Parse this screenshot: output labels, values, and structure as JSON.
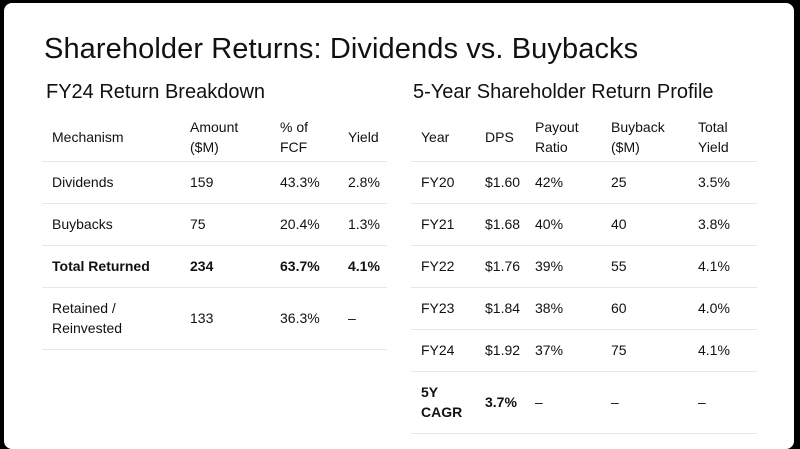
{
  "title": "Shareholder Returns: Dividends vs. Buybacks",
  "left": {
    "subtitle": "FY24 Return Breakdown",
    "headers": [
      "Mechanism",
      "Amount\n($M)",
      "% of\nFCF",
      "Yield"
    ],
    "rows": [
      [
        "Dividends",
        "159",
        "43.3%",
        "2.8%"
      ],
      [
        "Buybacks",
        "75",
        "20.4%",
        "1.3%"
      ],
      [
        "Total Returned",
        "234",
        "63.7%",
        "4.1%"
      ],
      [
        "Retained /\nReinvested",
        "133",
        "36.3%",
        "–"
      ]
    ]
  },
  "right": {
    "subtitle": "5-Year Shareholder Return Profile",
    "headers": [
      "Year",
      "DPS",
      "Payout\nRatio",
      "Buyback\n($M)",
      "Total\nYield"
    ],
    "rows": [
      [
        "FY20",
        "$1.60",
        "42%",
        "25",
        "3.5%"
      ],
      [
        "FY21",
        "$1.68",
        "40%",
        "40",
        "3.8%"
      ],
      [
        "FY22",
        "$1.76",
        "39%",
        "55",
        "4.1%"
      ],
      [
        "FY23",
        "$1.84",
        "38%",
        "60",
        "4.0%"
      ],
      [
        "FY24",
        "$1.92",
        "37%",
        "75",
        "4.1%"
      ],
      [
        "5Y\nCAGR",
        "3.7%",
        "–",
        "–",
        "–"
      ]
    ]
  }
}
